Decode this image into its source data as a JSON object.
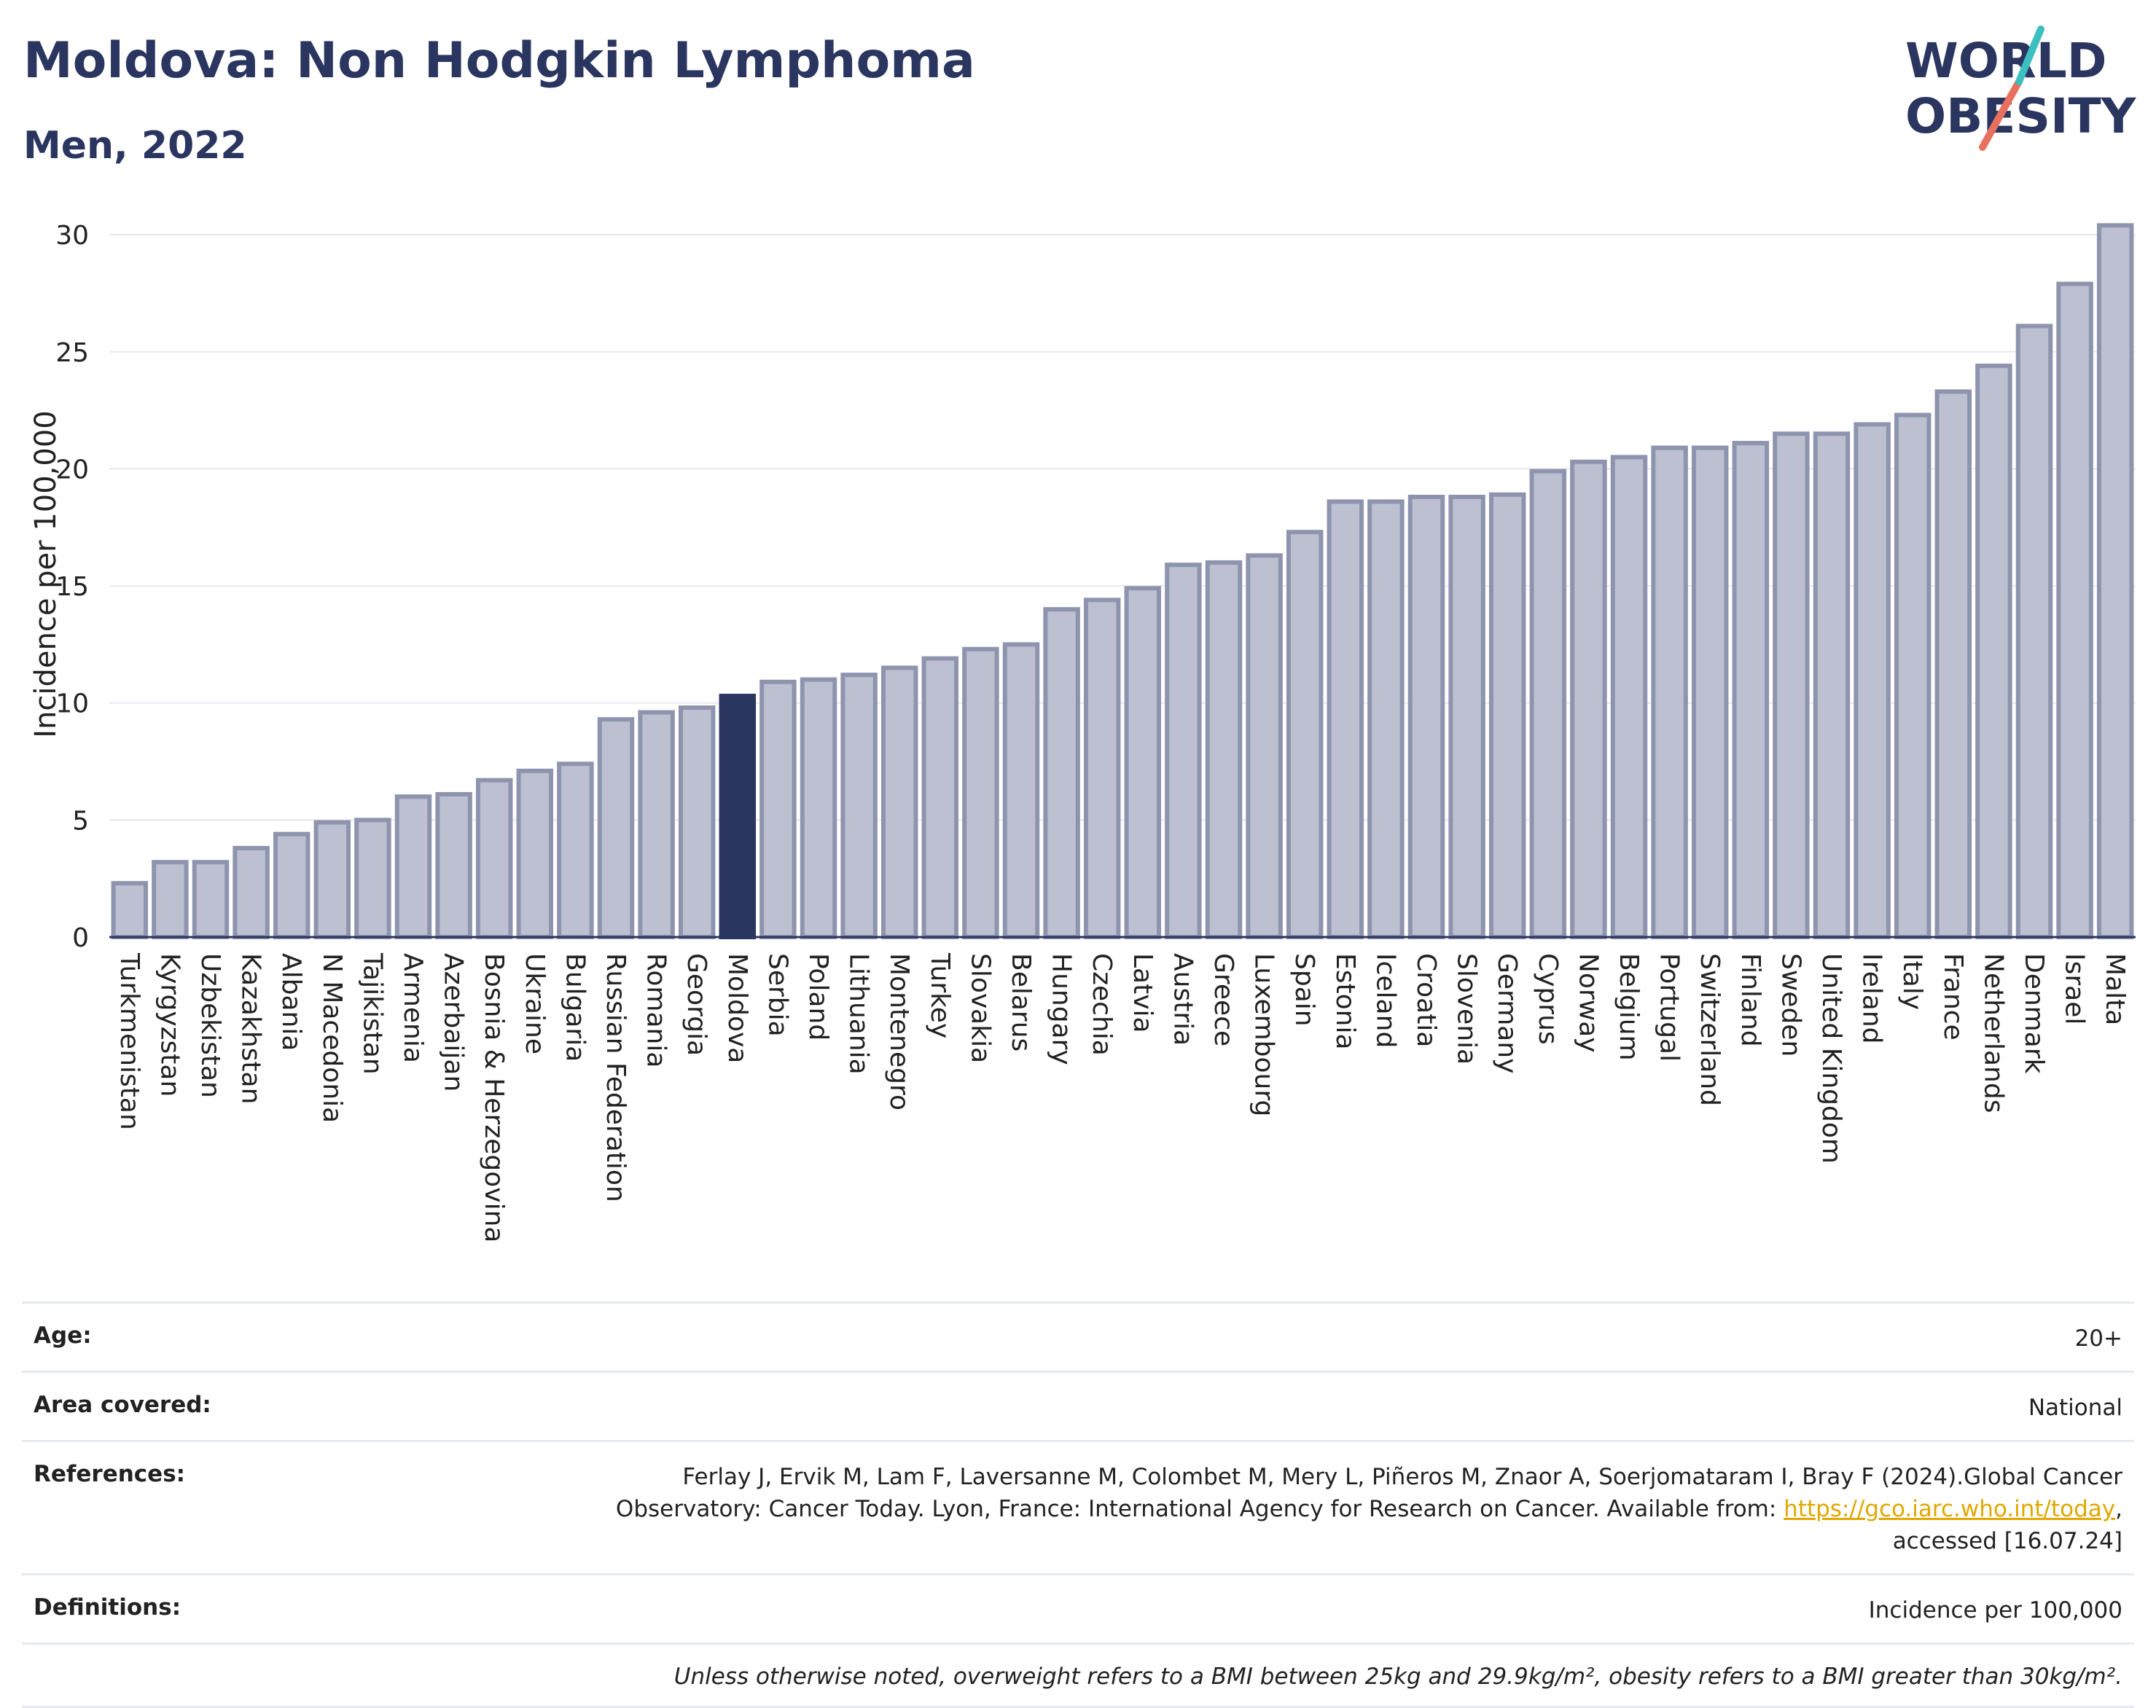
{
  "header": {
    "title": "Moldova: Non Hodgkin Lymphoma",
    "subtitle": "Men, 2022"
  },
  "logo": {
    "line1": "WORLD",
    "line2": "OBESITY"
  },
  "colors": {
    "bar": "#bcc0d0",
    "bar_stroke": "#8e94ae",
    "highlight": "#2a3560",
    "grid": "#e6e8ee",
    "axis": "#2a3560"
  },
  "chart_data": {
    "type": "bar",
    "ylabel": "Incidence per 100,000",
    "ylim": [
      0,
      31
    ],
    "yticks": [
      0,
      5,
      10,
      15,
      20,
      25,
      30
    ],
    "grid": true,
    "highlight": "Moldova",
    "categories": [
      "Turkmenistan",
      "Kyrgyzstan",
      "Uzbekistan",
      "Kazakhstan",
      "Albania",
      "N Macedonia",
      "Tajikistan",
      "Armenia",
      "Azerbaijan",
      "Bosnia & Herzegovina",
      "Ukraine",
      "Bulgaria",
      "Russian Federation",
      "Romania",
      "Georgia",
      "Moldova",
      "Serbia",
      "Poland",
      "Lithuania",
      "Montenegro",
      "Turkey",
      "Slovakia",
      "Belarus",
      "Hungary",
      "Czechia",
      "Latvia",
      "Austria",
      "Greece",
      "Luxembourg",
      "Spain",
      "Estonia",
      "Iceland",
      "Croatia",
      "Slovenia",
      "Germany",
      "Cyprus",
      "Norway",
      "Belgium",
      "Portugal",
      "Switzerland",
      "Finland",
      "Sweden",
      "United Kingdom",
      "Ireland",
      "Italy",
      "France",
      "Netherlands",
      "Denmark",
      "Israel",
      "Malta"
    ],
    "values": [
      2.3,
      3.2,
      3.2,
      3.8,
      4.4,
      4.9,
      5.0,
      6.0,
      6.1,
      6.7,
      7.1,
      7.4,
      9.3,
      9.6,
      9.8,
      10.3,
      10.9,
      11.0,
      11.2,
      11.5,
      11.9,
      12.3,
      12.5,
      14.0,
      14.4,
      14.9,
      15.9,
      16.0,
      16.3,
      17.3,
      18.6,
      18.6,
      18.8,
      18.8,
      18.9,
      19.9,
      20.3,
      20.5,
      20.9,
      20.9,
      21.1,
      21.5,
      21.5,
      21.9,
      22.3,
      23.3,
      24.4,
      26.1,
      27.9,
      30.4
    ]
  },
  "info": {
    "age": {
      "label": "Age:",
      "value": "20+"
    },
    "area": {
      "label": "Area covered:",
      "value": "National"
    },
    "references": {
      "label": "References:",
      "text_line1": "Ferlay J, Ervik M, Lam F, Laversanne M, Colombet M, Mery L, Piñeros M, Znaor A, Soerjomataram I, Bray F (2024).Global Cancer",
      "text_line2": "Observatory: Cancer Today. Lyon, France: International Agency for Research on Cancer. Available from: ",
      "link": "https://gco.iarc.who.int/today",
      "text_line3": "accessed [16.07.24]"
    },
    "definitions": {
      "label": "Definitions:",
      "value": "Incidence per 100,000"
    },
    "note": "Unless otherwise noted, overweight refers to a BMI between 25kg and 29.9kg/m², obesity refers to a BMI greater than 30kg/m²."
  }
}
